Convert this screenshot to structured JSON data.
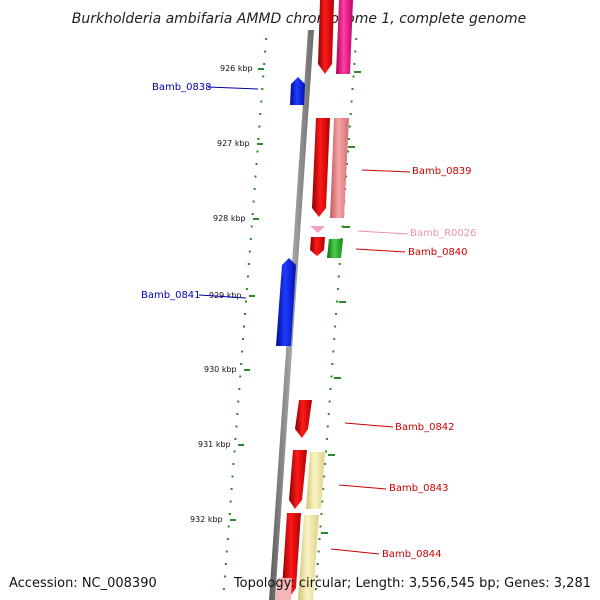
{
  "title": "Burkholderia ambifaria AMMD chromosome 1, complete genome",
  "accession": "Accession: NC_008390",
  "topology": "Topology: circular; Length: 3,556,545 bp; Genes: 3,281",
  "colors": {
    "backbone": "#8a8a8a",
    "tick": "#2a8a2a",
    "forward_gene": "#e00000",
    "forward_gene_alt": "#ff1a8c",
    "forward_rna": "#f07a90",
    "reverse_gene": "#0a1ee0",
    "pseudo_partner": "#e8898c",
    "green_partner": "#2aa82a",
    "yellow_partner": "#efe39a",
    "label_blue": "#0000b0",
    "label_red": "#cc0000",
    "label_pink": "#f090b0"
  },
  "kbp_labels": [
    "926 kbp",
    "927 kbp",
    "928 kbp",
    "929 kbp",
    "930 kbp",
    "931 kbp",
    "932 kbp"
  ],
  "gene_labels": [
    {
      "id": "Bamb_0838",
      "color": "label_blue"
    },
    {
      "id": "Bamb_0839",
      "color": "label_red"
    },
    {
      "id": "Bamb_R0026",
      "color": "label_pink"
    },
    {
      "id": "Bamb_0840",
      "color": "label_red"
    },
    {
      "id": "Bamb_0841",
      "color": "label_blue"
    },
    {
      "id": "Bamb_0842",
      "color": "label_red"
    },
    {
      "id": "Bamb_0843",
      "color": "label_red"
    },
    {
      "id": "Bamb_0844",
      "color": "label_red"
    }
  ]
}
